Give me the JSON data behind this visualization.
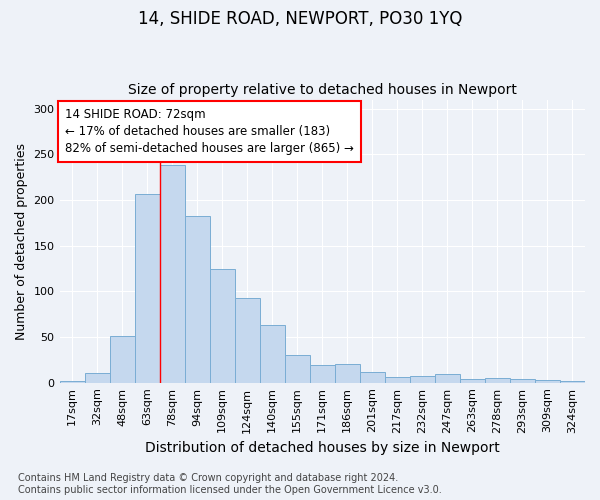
{
  "title": "14, SHIDE ROAD, NEWPORT, PO30 1YQ",
  "subtitle": "Size of property relative to detached houses in Newport",
  "xlabel": "Distribution of detached houses by size in Newport",
  "ylabel": "Number of detached properties",
  "categories": [
    "17sqm",
    "32sqm",
    "48sqm",
    "63sqm",
    "78sqm",
    "94sqm",
    "109sqm",
    "124sqm",
    "140sqm",
    "155sqm",
    "171sqm",
    "186sqm",
    "201sqm",
    "217sqm",
    "232sqm",
    "247sqm",
    "263sqm",
    "278sqm",
    "293sqm",
    "309sqm",
    "324sqm"
  ],
  "values": [
    2,
    11,
    51,
    207,
    238,
    183,
    124,
    93,
    63,
    30,
    19,
    21,
    12,
    6,
    7,
    10,
    4,
    5,
    4,
    3,
    2
  ],
  "bar_color": "#c5d8ee",
  "bar_edge_color": "#7aadd4",
  "red_line_x": 3.5,
  "ylim": [
    0,
    310
  ],
  "yticks": [
    0,
    50,
    100,
    150,
    200,
    250,
    300
  ],
  "annotation_box_text": "14 SHIDE ROAD: 72sqm\n← 17% of detached houses are smaller (183)\n82% of semi-detached houses are larger (865) →",
  "footnote": "Contains HM Land Registry data © Crown copyright and database right 2024.\nContains public sector information licensed under the Open Government Licence v3.0.",
  "title_fontsize": 12,
  "subtitle_fontsize": 10,
  "xlabel_fontsize": 10,
  "ylabel_fontsize": 9,
  "tick_fontsize": 8,
  "annotation_fontsize": 8.5,
  "footnote_fontsize": 7,
  "bg_color": "#eef2f8",
  "plot_bg_color": "#eef2f8",
  "grid_color": "#ffffff",
  "font_family": "DejaVu Sans"
}
